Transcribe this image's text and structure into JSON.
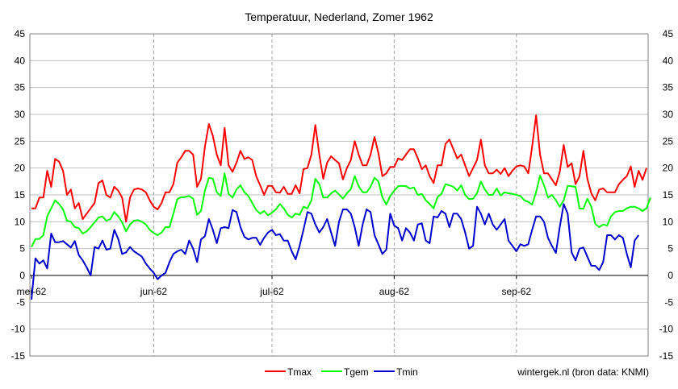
{
  "chart_data": {
    "type": "line",
    "title": "Temperatuur, Nederland, Zomer 1962",
    "xlabel": "",
    "ylabel": "",
    "ylim": [
      -15,
      45
    ],
    "y_ticks": [
      45,
      40,
      35,
      30,
      25,
      20,
      15,
      10,
      5,
      0,
      -5,
      -10,
      -15
    ],
    "x_tick_labels": [
      "mei-62",
      "jun-62",
      "jul-62",
      "aug-62",
      "sep-62"
    ],
    "x_tick_day_index": [
      0,
      31,
      61,
      92,
      123
    ],
    "y_axis_right_mirror": true,
    "grid": "vertical dashed at month starts, horizontal solid at every 5",
    "legend_position": "bottom-center",
    "source_note": "wintergek.nl (bron data: KNMI)",
    "series": [
      {
        "name": "Tmax",
        "color": "#ff0000",
        "values": [
          12.5,
          12.5,
          14.5,
          14.5,
          19.5,
          16.5,
          21.7,
          21.2,
          19.5,
          15.0,
          16.0,
          12.5,
          13.5,
          10.5,
          11.5,
          12.5,
          13.5,
          17.2,
          17.7,
          15.0,
          14.5,
          16.5,
          15.8,
          14.5,
          10.0,
          14.5,
          16.0,
          16.2,
          16.0,
          15.5,
          14.0,
          12.8,
          12.3,
          13.5,
          15.5,
          15.5,
          17.0,
          21.0,
          22.0,
          23.2,
          23.2,
          22.5,
          16.5,
          18.0,
          24.0,
          28.2,
          26.0,
          22.5,
          20.5,
          27.5,
          20.5,
          19.3,
          21.0,
          23.2,
          21.7,
          22.0,
          21.5,
          18.5,
          16.8,
          15.0,
          16.7,
          16.7,
          15.5,
          15.4,
          16.5,
          15.2,
          15.2,
          16.8,
          15.3,
          19.8,
          20.0,
          22.5,
          28.0,
          22.5,
          18.0,
          21.0,
          22.2,
          21.5,
          20.9,
          17.9,
          20.0,
          21.5,
          25.0,
          22.5,
          20.5,
          20.5,
          22.5,
          25.8,
          22.8,
          18.5,
          19.0,
          20.2,
          20.2,
          21.8,
          21.5,
          22.5,
          23.5,
          23.5,
          21.8,
          19.8,
          20.5,
          18.5,
          17.2,
          20.5,
          20.5,
          24.5,
          25.3,
          23.5,
          21.8,
          22.5,
          20.5,
          18.5,
          20.0,
          21.5,
          25.3,
          20.5,
          19.0,
          19.0,
          19.7,
          18.9,
          20.0,
          18.5,
          19.5,
          20.3,
          20.5,
          20.3,
          19.0,
          24.0,
          29.8,
          22.5,
          19.0,
          19.0,
          17.9,
          16.8,
          19.3,
          24.3,
          20.2,
          20.9,
          17.0,
          18.5,
          23.2,
          18.0,
          15.3,
          14.0,
          16.0,
          16.2,
          15.5,
          15.5,
          15.5,
          17.0,
          17.8,
          18.5,
          20.3,
          16.5,
          19.5,
          17.8,
          20.0
        ]
      },
      {
        "name": "Tgem",
        "color": "#00ff00",
        "values": [
          5.3,
          6.8,
          6.8,
          7.5,
          11.0,
          12.5,
          14.0,
          13.3,
          12.3,
          10.2,
          10.0,
          9.0,
          8.8,
          7.8,
          8.2,
          9.0,
          9.9,
          10.8,
          11.0,
          10.2,
          10.5,
          11.8,
          11.0,
          9.9,
          8.2,
          9.5,
          10.2,
          10.3,
          10.0,
          9.5,
          8.5,
          7.9,
          7.5,
          8.0,
          9.0,
          9.0,
          11.5,
          14.2,
          14.6,
          14.6,
          14.8,
          14.3,
          11.3,
          12.0,
          15.8,
          18.2,
          18.0,
          15.5,
          14.8,
          19.0,
          15.2,
          14.5,
          16.0,
          16.8,
          15.5,
          14.8,
          13.5,
          12.2,
          11.5,
          12.0,
          11.2,
          11.7,
          12.3,
          13.3,
          12.5,
          11.3,
          10.8,
          11.5,
          11.3,
          12.8,
          12.5,
          14.0,
          18.0,
          17.0,
          14.5,
          14.5,
          15.3,
          15.8,
          15.1,
          14.3,
          15.3,
          16.1,
          18.5,
          16.6,
          15.5,
          15.5,
          16.5,
          18.2,
          17.5,
          14.6,
          13.2,
          14.8,
          15.8,
          16.6,
          16.7,
          16.6,
          16.2,
          16.4,
          15.0,
          15.2,
          14.0,
          13.3,
          12.5,
          14.6,
          15.2,
          17.0,
          16.8,
          16.5,
          15.8,
          16.8,
          15.0,
          14.2,
          14.3,
          15.3,
          17.5,
          16.0,
          15.0,
          15.0,
          16.2,
          14.9,
          15.5,
          15.3,
          15.2,
          15.0,
          14.8,
          14.0,
          13.7,
          13.2,
          15.5,
          18.6,
          16.8,
          14.5,
          15.0,
          14.0,
          12.8,
          14.0,
          16.7,
          16.6,
          16.5,
          12.5,
          12.4,
          14.3,
          12.8,
          9.6,
          9.0,
          9.5,
          9.3,
          11.0,
          11.8,
          12.0,
          12.0,
          12.5,
          12.8,
          12.8,
          12.5,
          12.0,
          12.5,
          14.5
        ]
      },
      {
        "name": "Tmin",
        "color": "#0000cc",
        "values": [
          -4.5,
          3.2,
          2.2,
          2.8,
          1.3,
          7.8,
          6.2,
          6.2,
          6.4,
          5.8,
          5.2,
          6.4,
          3.8,
          2.8,
          1.5,
          0.0,
          5.3,
          5.0,
          6.5,
          4.8,
          5.0,
          8.5,
          6.8,
          4.0,
          4.3,
          5.3,
          4.5,
          4.0,
          3.5,
          2.2,
          1.3,
          0.5,
          -0.7,
          0.0,
          0.5,
          2.5,
          4.0,
          4.5,
          4.8,
          4.0,
          6.5,
          5.0,
          2.5,
          6.7,
          7.3,
          10.5,
          8.5,
          6.0,
          8.8,
          9.0,
          8.8,
          12.2,
          11.8,
          9.0,
          7.2,
          6.7,
          7.0,
          7.0,
          5.7,
          7.0,
          8.0,
          8.5,
          7.5,
          7.7,
          6.5,
          6.5,
          4.5,
          3.0,
          5.5,
          8.5,
          11.8,
          11.5,
          9.5,
          8.0,
          9.0,
          10.5,
          8.0,
          5.5,
          10.0,
          12.3,
          12.3,
          11.5,
          9.0,
          5.5,
          9.5,
          12.3,
          11.8,
          7.5,
          5.8,
          4.0,
          4.8,
          11.5,
          9.3,
          8.8,
          6.5,
          8.8,
          8.0,
          6.5,
          9.5,
          9.7,
          6.5,
          6.0,
          11.0,
          10.8,
          12.0,
          11.5,
          9.0,
          11.5,
          11.5,
          10.5,
          8.0,
          5.0,
          5.5,
          12.8,
          11.5,
          9.5,
          11.5,
          9.5,
          8.5,
          9.5,
          10.5,
          6.5,
          5.5,
          4.5,
          5.8,
          5.5,
          5.8,
          8.5,
          11.0,
          11.0,
          10.0,
          7.0,
          5.5,
          4.2,
          9.0,
          13.3,
          11.5,
          4.3,
          2.8,
          5.0,
          5.2,
          3.5,
          1.8,
          1.8,
          1.0,
          2.5,
          7.5,
          7.5,
          6.7,
          7.5,
          7.0,
          4.0,
          1.5,
          6.5,
          7.5
        ]
      }
    ]
  }
}
